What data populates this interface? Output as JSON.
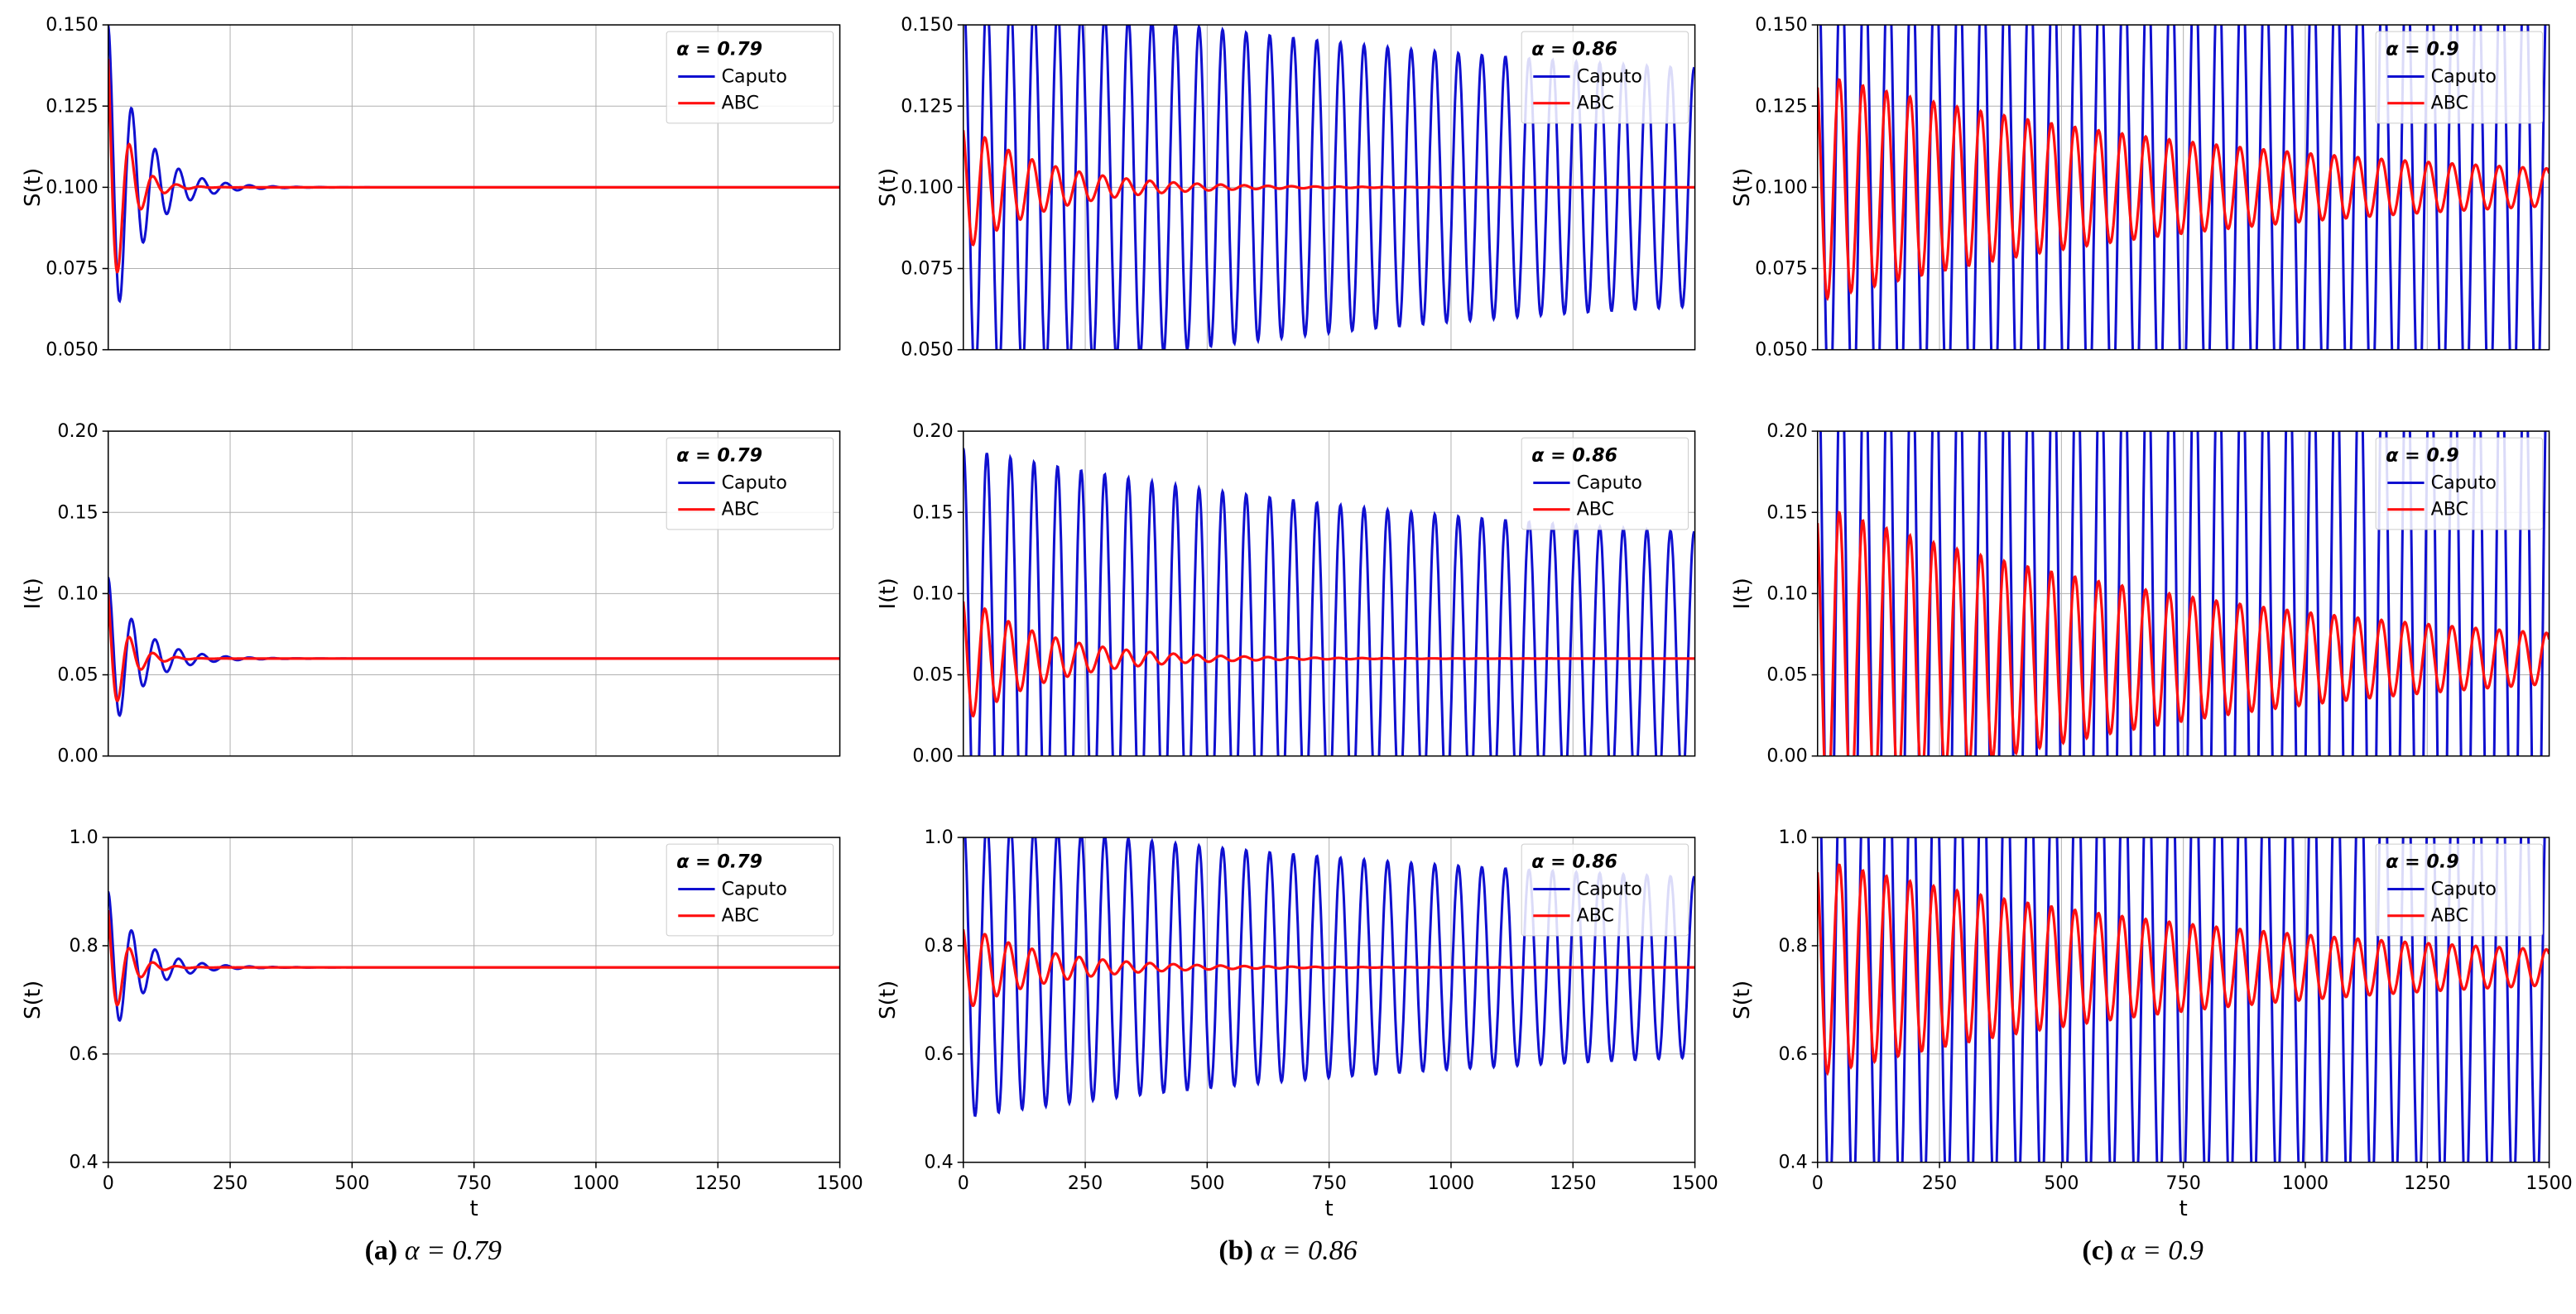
{
  "global": {
    "x_label": "t",
    "xlim": [
      0,
      1500
    ],
    "xticks": [
      0,
      250,
      500,
      750,
      1000,
      1250,
      1500
    ],
    "background_color": "#ffffff",
    "grid_color": "#b0b0b0",
    "axis_color": "#000000",
    "line_width_caputo": 3.0,
    "line_width_abc": 3.2,
    "color_caputo": "#1010d0",
    "color_abc": "#ff1010",
    "legend_labels": [
      "Caputo",
      "ABC"
    ],
    "tick_fontsize": 22,
    "label_fontsize": 26,
    "caption_fontsize": 34
  },
  "columns": [
    {
      "alpha": 0.79,
      "alpha_label": "α = 0.79",
      "caption_prefix": "(a)",
      "caption_text": "α = 0.79",
      "caputo_decay": 0.015,
      "abc_decay": 0.028,
      "freq": 0.13
    },
    {
      "alpha": 0.86,
      "alpha_label": "α = 0.86",
      "caption_prefix": "(b)",
      "caption_text": "α = 0.86",
      "caputo_decay": 0.0009,
      "abc_decay": 0.006,
      "freq": 0.13
    },
    {
      "alpha": 0.9,
      "alpha_label": "α = 0.9",
      "caption_prefix": "(c)",
      "caption_text": "α = 0.9",
      "caputo_decay": 0.0,
      "abc_decay": 0.0012,
      "freq": 0.13
    }
  ],
  "rows": [
    {
      "ylabel": "S(t)",
      "ylim": [
        0.05,
        0.15
      ],
      "yticks": [
        0.05,
        0.075,
        0.1,
        0.125,
        0.15
      ],
      "ytick_fmt": 3,
      "equilibrium": 0.1,
      "amp_caputo": [
        0.05,
        0.033,
        0.04
      ],
      "amp_abc": [
        0.045,
        0.02,
        0.035
      ]
    },
    {
      "ylabel": "I(t)",
      "ylim": [
        0.0,
        0.2
      ],
      "yticks": [
        0.0,
        0.05,
        0.1,
        0.15,
        0.2
      ],
      "ytick_fmt": 2,
      "equilibrium": 0.06,
      "amp_caputo": [
        0.05,
        0.07,
        0.11
      ],
      "amp_abc": [
        0.045,
        0.04,
        0.095
      ]
    },
    {
      "ylabel": "S(t)",
      "ylim": [
        0.4,
        1.0
      ],
      "yticks": [
        0.4,
        0.6,
        0.8,
        1.0
      ],
      "ytick_fmt": 1,
      "equilibrium": 0.76,
      "amp_caputo": [
        0.14,
        0.15,
        0.24
      ],
      "amp_abc": [
        0.12,
        0.08,
        0.2
      ]
    }
  ]
}
